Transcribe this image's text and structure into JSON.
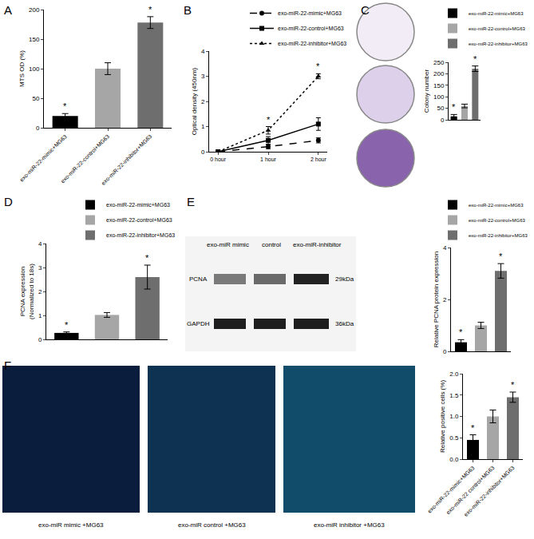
{
  "chart_data": [
    {
      "type": "bar",
      "title": "A",
      "y_label": "MTS OD (%)",
      "categories": [
        "exo-miR-22-mimic+MG63",
        "exo-miR-22-control+MG63",
        "exo-miR-22-inhibitor+MG63"
      ],
      "values": [
        20,
        100,
        178
      ],
      "errors": [
        4,
        10,
        10
      ],
      "colors": [
        "#000000",
        "#a6a6a6",
        "#6e6e6e"
      ],
      "significance": [
        "*",
        null,
        "*"
      ],
      "ylim": [
        0,
        200
      ],
      "yticks": [
        0,
        50,
        100,
        150,
        200
      ]
    },
    {
      "type": "line",
      "title": "B",
      "y_label": "Optical density (450nm)",
      "categories": [
        "0 hour",
        "1 hour",
        "2 hour"
      ],
      "series": [
        {
          "name": "exo-miR-22-mimic+MG63",
          "color": "#000000",
          "values": [
            0,
            0.2,
            0.45
          ],
          "errors": [
            0,
            0.08,
            0.1
          ],
          "marker": "circle",
          "line_style": "dash"
        },
        {
          "name": "exo-miR-22-control+MG63",
          "color": "#000000",
          "values": [
            0,
            0.45,
            1.1
          ],
          "errors": [
            0,
            0.15,
            0.25
          ],
          "marker": "square",
          "line_style": "solid"
        },
        {
          "name": "exo-miR-22-inhibitor+MG63",
          "color": "#000000",
          "values": [
            0,
            0.85,
            3.0
          ],
          "errors": [
            0,
            0.15,
            0.1
          ],
          "marker": "triangle-up",
          "line_style": "dot"
        }
      ],
      "significance": [
        null,
        "*",
        "*"
      ],
      "ylim": [
        0,
        4
      ],
      "yticks": [
        0,
        1,
        2,
        3,
        4
      ],
      "legend": "top right"
    },
    {
      "type": "bar",
      "title": "C",
      "y_label": "Colony number",
      "categories": [
        "exo-miR-22-mimic+MG63",
        "exo-miR-22-control+MG63",
        "exo-miR-22-inhibitor+MG63"
      ],
      "values": [
        15,
        60,
        222
      ],
      "errors": [
        8,
        8,
        12
      ],
      "colors": [
        "#000000",
        "#a6a6a6",
        "#6e6e6e"
      ],
      "significance": [
        "*",
        null,
        "*"
      ],
      "ylim": [
        0,
        250
      ],
      "yticks": [
        0,
        50,
        100,
        150,
        200,
        250
      ],
      "legend": "top right",
      "tick_labels": "y"
    },
    {
      "type": "bar",
      "title": "D",
      "y_label": "PCNA expression\n(Normalized to 18s)",
      "categories": [
        "exo-miR-22-mimic+MG63",
        "exo-miR-22-control+MG63",
        "exo-miR-22-inhibitor+MG63"
      ],
      "values": [
        0.27,
        1.02,
        2.6
      ],
      "errors": [
        0.04,
        0.1,
        0.5
      ],
      "colors": [
        "#000000",
        "#a6a6a6",
        "#6e6e6e"
      ],
      "significance": [
        "*",
        null,
        "*"
      ],
      "ylim": [
        0,
        4
      ],
      "yticks": [
        0,
        1,
        2,
        3,
        4
      ],
      "legend": "top right",
      "tick_labels": "y"
    },
    {
      "type": "bar",
      "title": "E",
      "y_label": "Relative PCNA protein expression",
      "categories": [
        "exo-miR-22-mimic+MG63",
        "exo-miR-22-control+MG63",
        "exo-miR-22-inhibitor+MG63"
      ],
      "values": [
        0.35,
        1.0,
        3.1
      ],
      "errors": [
        0.1,
        0.12,
        0.28
      ],
      "colors": [
        "#000000",
        "#a6a6a6",
        "#6e6e6e"
      ],
      "significance": [
        "*",
        null,
        "*"
      ],
      "ylim": [
        0,
        4
      ],
      "yticks": [
        0,
        2,
        4
      ],
      "legend": "top right",
      "tick_labels": "y",
      "annotations": [
        "exo-miR mimic",
        "control",
        "exo-miR-inhibitor",
        "PCNA",
        "29kDa",
        "GAPDH",
        "36kDa"
      ]
    },
    {
      "type": "bar",
      "title": "F",
      "y_label": "Relative positive cells (%)",
      "categories": [
        "exo-miR-22-mimic+MG63",
        "exo-miR-22 control+MG63",
        "exo-miR-22-inhibitor+MG63"
      ],
      "values": [
        0.45,
        1.0,
        1.45
      ],
      "errors": [
        0.12,
        0.15,
        0.12
      ],
      "colors": [
        "#000000",
        "#a6a6a6",
        "#6e6e6e"
      ],
      "significance": [
        "*",
        null,
        "*"
      ],
      "ylim": [
        0,
        2
      ],
      "yticks": [
        {
          "value": 0,
          "label": "0.0"
        },
        0.5,
        {
          "value": 1,
          "label": "1.0"
        },
        1.5,
        {
          "value": 2,
          "label": "2.0"
        }
      ],
      "annotations": [
        "exo-miR mimic +MG63",
        "exo-miR control +MG63",
        "exo-miR inhibitor +MG63"
      ]
    }
  ]
}
